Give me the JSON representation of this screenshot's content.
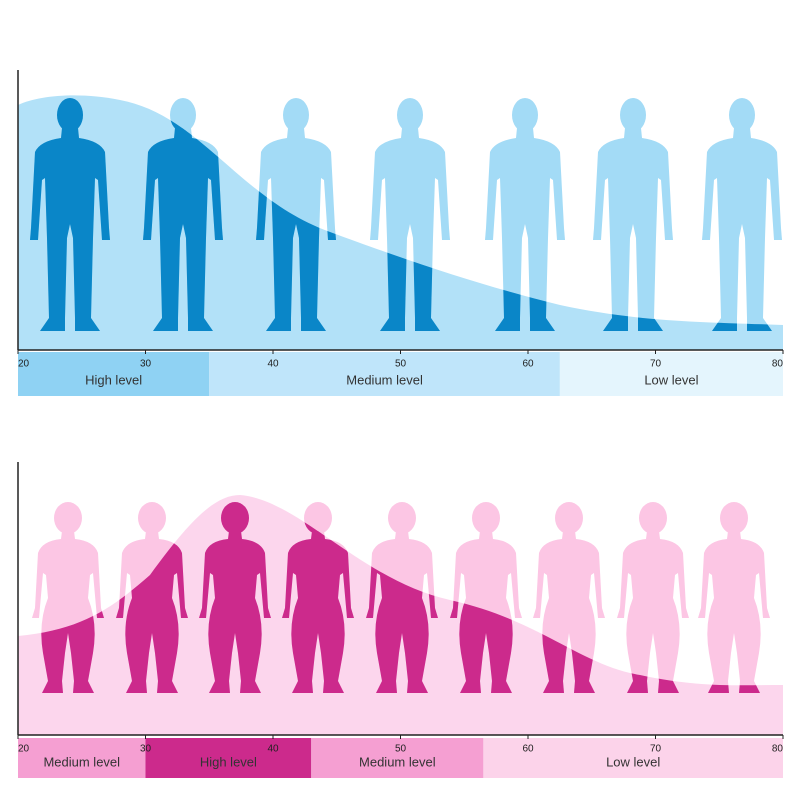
{
  "chart_data": [
    {
      "type": "range",
      "xlim": [
        20,
        80
      ],
      "xticks": [
        20,
        30,
        40,
        50,
        60,
        70,
        80
      ],
      "bands": [
        {
          "from": 20,
          "to": 35,
          "label": "High level",
          "color": "#8fd2f3"
        },
        {
          "from": 35,
          "to": 62.5,
          "label": "Medium level",
          "color": "#bfe5fa"
        },
        {
          "from": 62.5,
          "to": 80,
          "label": "Low level",
          "color": "#e4f5fd"
        }
      ]
    },
    {
      "type": "range",
      "xlim": [
        20,
        80
      ],
      "xticks": [
        20,
        30,
        40,
        50,
        60,
        70,
        80
      ],
      "bands": [
        {
          "from": 20,
          "to": 30,
          "label": "Medium level",
          "color": "#f59fd2"
        },
        {
          "from": 30,
          "to": 43,
          "label": "High level",
          "color": "#cc2a8c"
        },
        {
          "from": 43,
          "to": 56.5,
          "label": "Medium level",
          "color": "#f59fd2"
        },
        {
          "from": 56.5,
          "to": 80,
          "label": "Low level",
          "color": "#fcd3ea"
        }
      ]
    }
  ]
}
